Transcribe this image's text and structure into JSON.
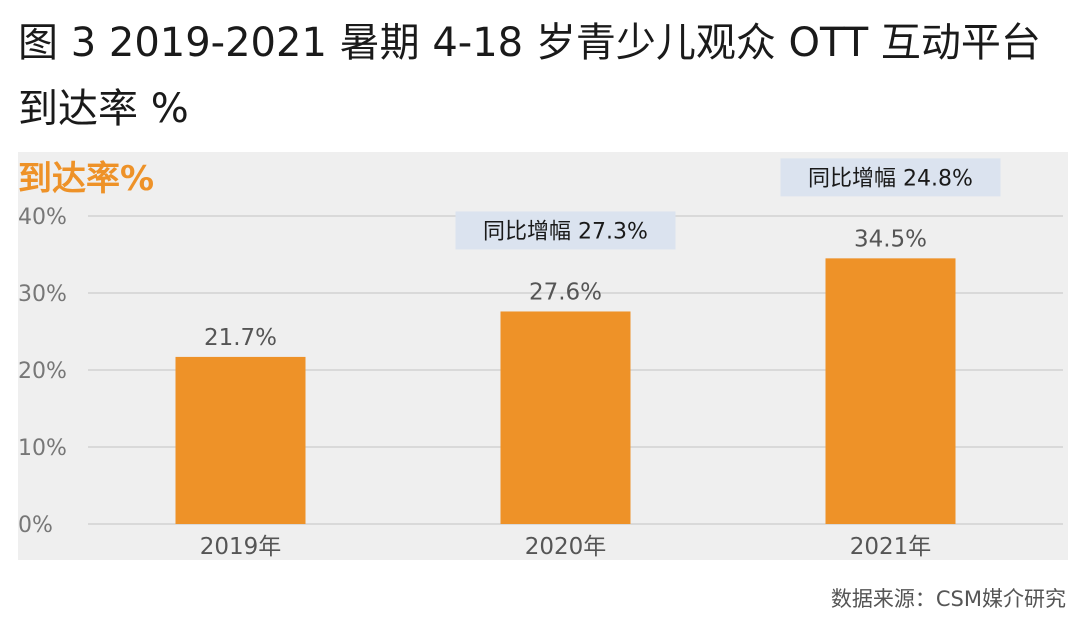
{
  "title": "图 3 2019-2021 暑期 4-18 岁青少儿观众 OTT 互动平台到达率 %",
  "source": "数据来源：CSM媒介研究",
  "colors": {
    "bar": "#ee9228",
    "ylabel": "#ee9228",
    "panel": "#efefef",
    "grid": "#d9d9d9",
    "callout_bg": "#dbe3ef",
    "tick": "#777777"
  },
  "chart_data": {
    "type": "bar",
    "ylabel": "到达率%",
    "categories": [
      "2019年",
      "2020年",
      "2021年"
    ],
    "values": [
      21.7,
      27.6,
      34.5
    ],
    "data_labels": [
      "21.7%",
      "27.6%",
      "34.5%"
    ],
    "ylim": [
      0,
      40
    ],
    "yticks": [
      0,
      10,
      20,
      30,
      40
    ],
    "ytick_labels": [
      "0%",
      "10%",
      "20%",
      "30%",
      "40%"
    ],
    "grid": true,
    "annotations": [
      {
        "category_index": 1,
        "text": "同比增幅 27.3%"
      },
      {
        "category_index": 2,
        "text": "同比增幅 24.8%"
      }
    ]
  }
}
